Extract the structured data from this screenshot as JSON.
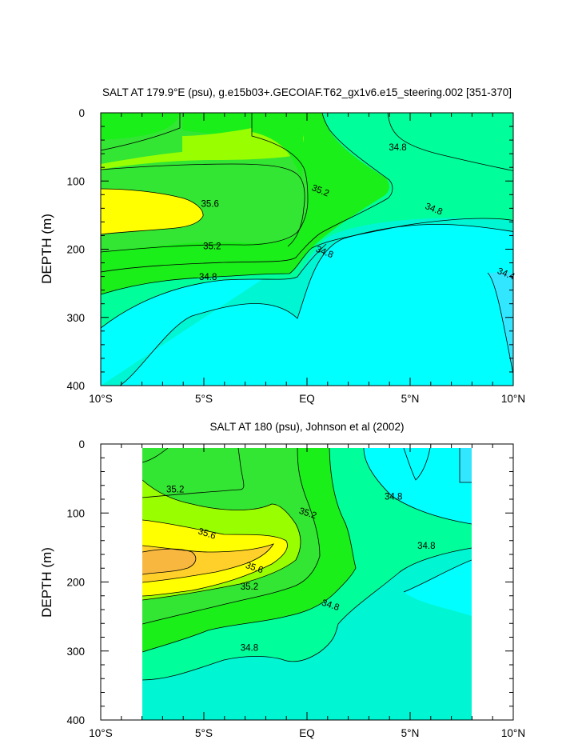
{
  "chart_data": [
    {
      "type": "contour",
      "title": "SALT AT 179.9°E (psu), g.e15b03+.GECOIAF.T62_gx1v6.e15_steering.002 [351-370]",
      "xlabel": "",
      "ylabel": "DEPTH (m)",
      "xlim": [
        -10,
        10
      ],
      "ylim": [
        400,
        0
      ],
      "x_tick_values": [
        -10,
        -5,
        0,
        5,
        10
      ],
      "x_tick_labels": [
        "10°S",
        "5°S",
        "EQ",
        "5°N",
        "10°N"
      ],
      "y_tick_values": [
        0,
        100,
        200,
        300,
        400
      ],
      "y_tick_labels": [
        "0",
        "100",
        "200",
        "300",
        "400"
      ],
      "contour_interval": 0.2,
      "levels": [
        34.4,
        34.6,
        34.8,
        35.0,
        35.2,
        35.4,
        35.6
      ],
      "data_lon_range": [
        -10,
        10
      ],
      "colors": {
        "below_34_4": "#33e6ff",
        "34_4_34_6": "#00ffff",
        "34_6_34_8": "#00f5d2",
        "34_8_35_0": "#00ff9a",
        "35_0_35_2": "#1aef1a",
        "35_2_35_4": "#33e633",
        "35_4_35_6": "#99ff00",
        "35_6_35_8": "#ffff00",
        "35_8_36_0": "#ffd02a"
      },
      "contour_labels": [
        {
          "text": "35.6",
          "lon": -4.7,
          "depth": 138
        },
        {
          "text": "35.2",
          "lon": 0.6,
          "depth": 118
        },
        {
          "text": "34.8",
          "lon": 4.4,
          "depth": 55
        },
        {
          "text": "34.8",
          "lon": 6.1,
          "depth": 145
        },
        {
          "text": "35.2",
          "lon": -4.6,
          "depth": 200
        },
        {
          "text": "34.8",
          "lon": 0.8,
          "depth": 208
        },
        {
          "text": "34.8",
          "lon": -4.8,
          "depth": 245
        },
        {
          "text": "34.4",
          "lon": 9.6,
          "depth": 240
        }
      ]
    },
    {
      "type": "contour",
      "title": "SALT AT 180 (psu), Johnson et al (2002)",
      "xlabel": "",
      "ylabel": "DEPTH (m)",
      "xlim": [
        -10,
        10
      ],
      "ylim": [
        400,
        0
      ],
      "x_tick_values": [
        -10,
        -5,
        0,
        5,
        10
      ],
      "x_tick_labels": [
        "10°S",
        "5°S",
        "EQ",
        "5°N",
        "10°N"
      ],
      "y_tick_values": [
        0,
        100,
        200,
        300,
        400
      ],
      "y_tick_labels": [
        "0",
        "100",
        "200",
        "300",
        "400"
      ],
      "contour_interval": 0.2,
      "levels": [
        34.6,
        34.8,
        35.0,
        35.2,
        35.4,
        35.6,
        35.8
      ],
      "data_lon_range": [
        -8,
        8
      ],
      "contour_labels": [
        {
          "text": "35.2",
          "lon": -6.4,
          "depth": 65
        },
        {
          "text": "35.2",
          "lon": 0,
          "depth": 100
        },
        {
          "text": "34.8",
          "lon": 4.2,
          "depth": 76
        },
        {
          "text": "35.6",
          "lon": -4.9,
          "depth": 130
        },
        {
          "text": "34.8",
          "lon": 5.8,
          "depth": 148
        },
        {
          "text": "35.6",
          "lon": -2.6,
          "depth": 180
        },
        {
          "text": "35.2",
          "lon": -2.8,
          "depth": 208
        },
        {
          "text": "34.8",
          "lon": 1.1,
          "depth": 235
        },
        {
          "text": "34.8",
          "lon": -2.8,
          "depth": 298
        }
      ]
    }
  ]
}
